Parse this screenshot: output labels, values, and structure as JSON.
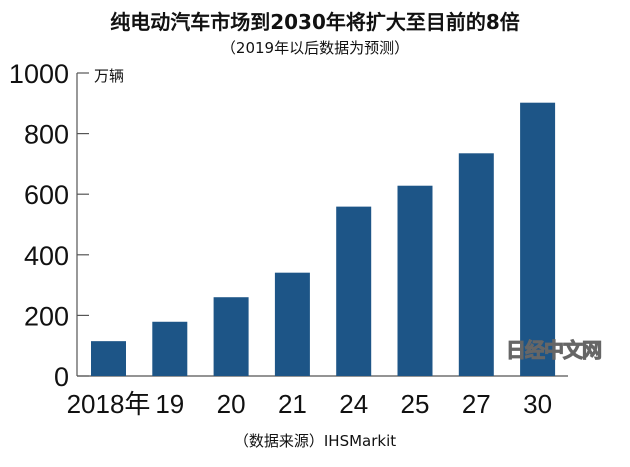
{
  "chart_data": {
    "type": "bar",
    "title": "纯电动汽车市场到2030年将扩大至目前的8倍",
    "subtitle": "（2019年以后数据为预测）",
    "ylabel": "万辆",
    "xlabel": "",
    "categories": [
      "2018年",
      "19",
      "20",
      "21",
      "24",
      "25",
      "27",
      "30"
    ],
    "values": [
      115,
      179,
      260,
      341,
      559,
      628,
      735,
      902
    ],
    "ylim": [
      0,
      1000
    ],
    "yticks": [
      0,
      200,
      400,
      600,
      800,
      1000
    ],
    "grid": false,
    "bar_color": "#1d5587",
    "source": "（数据来源）IHSMarkit",
    "watermark": "日经中文网"
  }
}
